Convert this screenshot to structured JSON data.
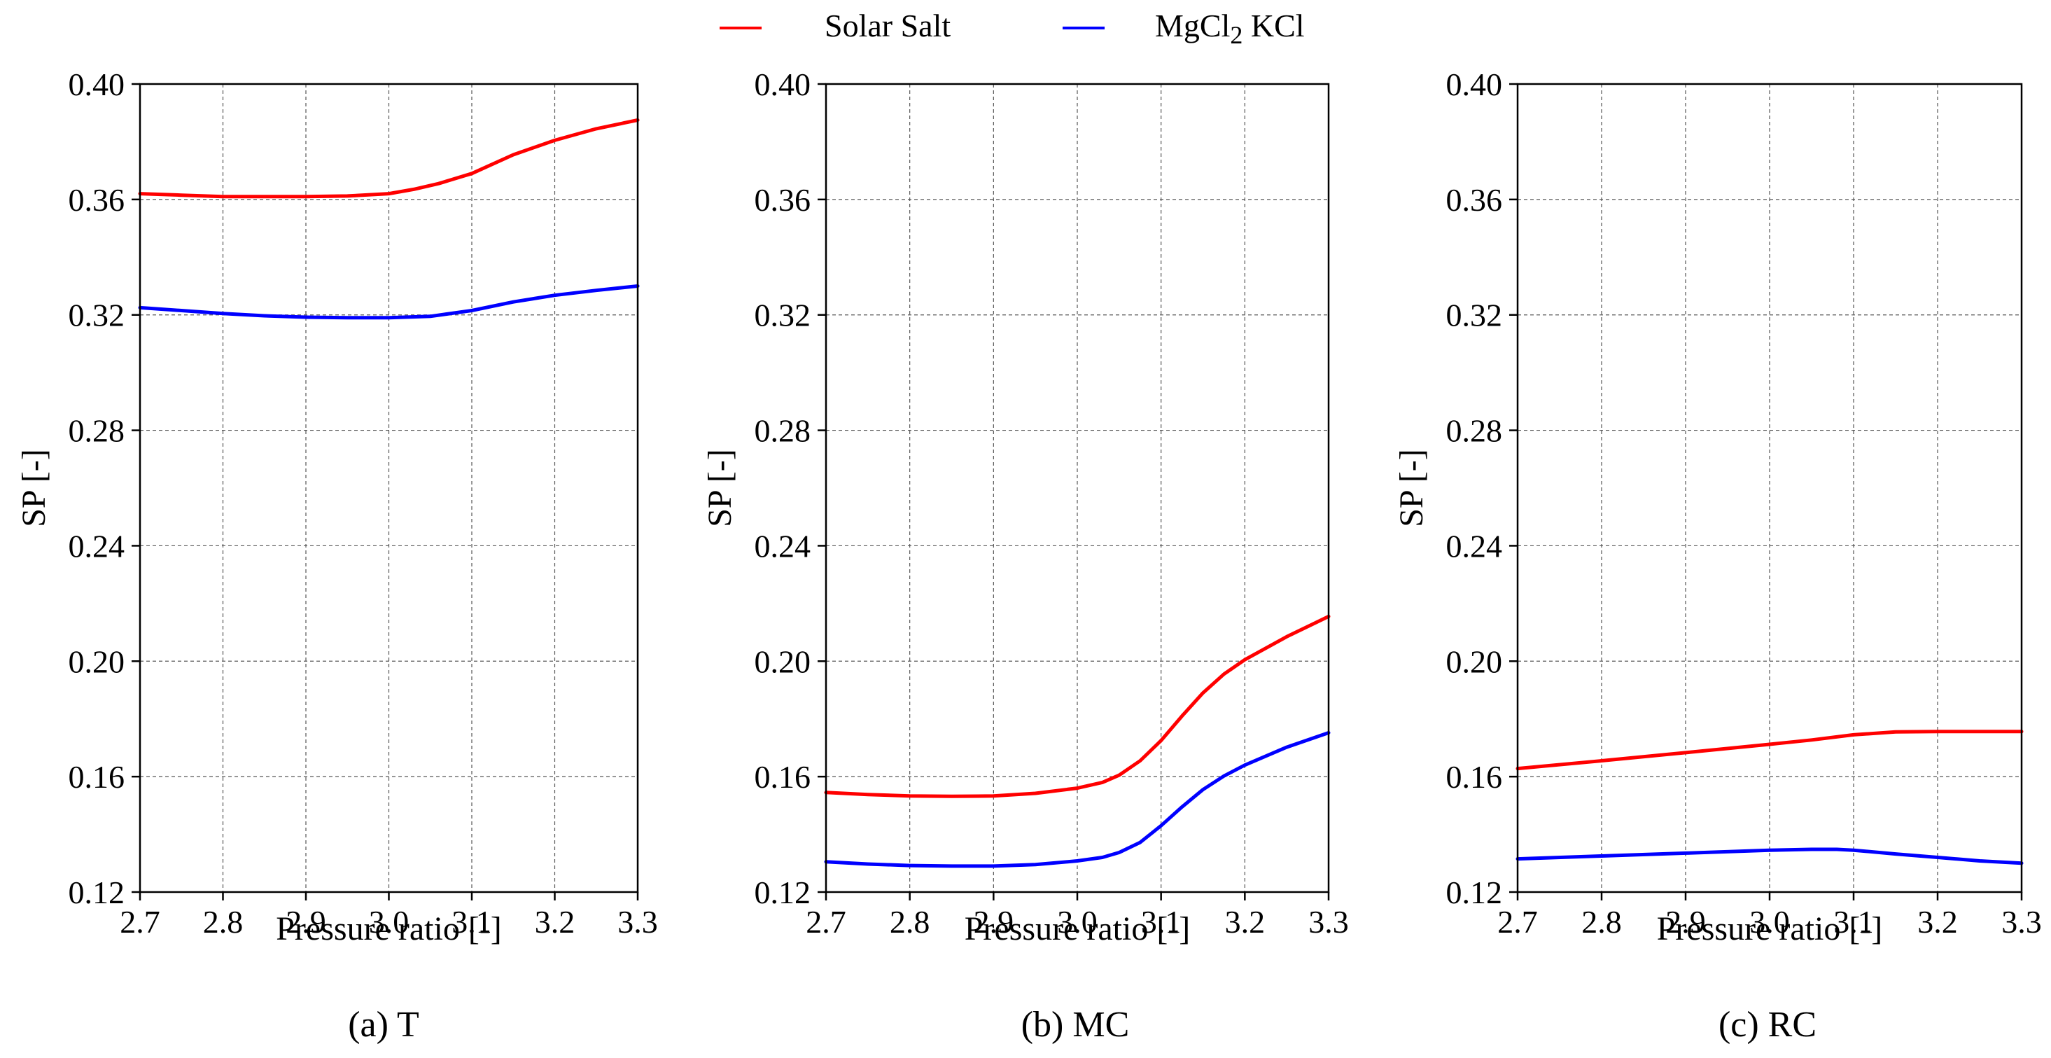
{
  "legend": {
    "placement": "top-center",
    "entries": [
      {
        "label": "Solar Salt",
        "color": "#ff0000"
      },
      {
        "label_main": "MgCl",
        "label_sub": "2",
        "label_rest": " KCl",
        "color": "#0000ff"
      }
    ]
  },
  "chart_data": [
    {
      "type": "line",
      "title": "(a) T",
      "xlabel": "Pressure ratio [-]",
      "ylabel": "SP [-]",
      "xlim": [
        2.7,
        3.3
      ],
      "ylim": [
        0.12,
        0.4
      ],
      "xticks": [
        "2.7",
        "2.8",
        "2.9",
        "3.0",
        "3.1",
        "3.2",
        "3.3"
      ],
      "yticks": [
        "0.12",
        "0.16",
        "0.20",
        "0.24",
        "0.28",
        "0.32",
        "0.36",
        "0.40"
      ],
      "grid": true,
      "series": [
        {
          "name": "Solar Salt",
          "color": "#ff0000",
          "x": [
            2.7,
            2.75,
            2.8,
            2.85,
            2.9,
            2.95,
            3.0,
            3.03,
            3.06,
            3.1,
            3.15,
            3.2,
            3.25,
            3.3
          ],
          "y": [
            0.362,
            0.3615,
            0.361,
            0.361,
            0.361,
            0.3612,
            0.362,
            0.3635,
            0.3655,
            0.369,
            0.3755,
            0.3805,
            0.3845,
            0.3875
          ]
        },
        {
          "name": "MgCl2 KCl",
          "color": "#0000ff",
          "x": [
            2.7,
            2.75,
            2.8,
            2.85,
            2.9,
            2.95,
            3.0,
            3.05,
            3.1,
            3.15,
            3.2,
            3.25,
            3.3
          ],
          "y": [
            0.3225,
            0.3215,
            0.3205,
            0.3197,
            0.3192,
            0.319,
            0.319,
            0.3195,
            0.3215,
            0.3245,
            0.3268,
            0.3285,
            0.33
          ]
        }
      ]
    },
    {
      "type": "line",
      "title": "(b) MC",
      "xlabel": "Pressure ratio [-]",
      "ylabel": "SP [-]",
      "xlim": [
        2.7,
        3.3
      ],
      "ylim": [
        0.12,
        0.4
      ],
      "xticks": [
        "2.7",
        "2.8",
        "2.9",
        "3.0",
        "3.1",
        "3.2",
        "3.3"
      ],
      "yticks": [
        "0.12",
        "0.16",
        "0.20",
        "0.24",
        "0.28",
        "0.32",
        "0.36",
        "0.40"
      ],
      "grid": true,
      "series": [
        {
          "name": "Solar Salt",
          "color": "#ff0000",
          "x": [
            2.7,
            2.75,
            2.8,
            2.85,
            2.9,
            2.95,
            3.0,
            3.03,
            3.05,
            3.075,
            3.1,
            3.125,
            3.15,
            3.175,
            3.2,
            3.25,
            3.3
          ],
          "y": [
            0.1545,
            0.1538,
            0.1533,
            0.1532,
            0.1533,
            0.1542,
            0.156,
            0.158,
            0.1605,
            0.1655,
            0.1725,
            0.181,
            0.189,
            0.1955,
            0.2005,
            0.2085,
            0.2155
          ]
        },
        {
          "name": "MgCl2 KCl",
          "color": "#0000ff",
          "x": [
            2.7,
            2.75,
            2.8,
            2.85,
            2.9,
            2.95,
            3.0,
            3.03,
            3.05,
            3.075,
            3.1,
            3.125,
            3.15,
            3.175,
            3.2,
            3.25,
            3.3
          ],
          "y": [
            0.1305,
            0.1297,
            0.1292,
            0.129,
            0.129,
            0.1295,
            0.1308,
            0.132,
            0.1337,
            0.1372,
            0.143,
            0.1495,
            0.1555,
            0.1602,
            0.164,
            0.1702,
            0.1752
          ]
        }
      ]
    },
    {
      "type": "line",
      "title": "(c) RC",
      "xlabel": "Pressure ratio [-]",
      "ylabel": "SP [-]",
      "xlim": [
        2.7,
        3.3
      ],
      "ylim": [
        0.12,
        0.4
      ],
      "xticks": [
        "2.7",
        "2.8",
        "2.9",
        "3.0",
        "3.1",
        "3.2",
        "3.3"
      ],
      "yticks": [
        "0.12",
        "0.16",
        "0.20",
        "0.24",
        "0.28",
        "0.32",
        "0.36",
        "0.40"
      ],
      "grid": true,
      "series": [
        {
          "name": "Solar Salt",
          "color": "#ff0000",
          "x": [
            2.7,
            2.8,
            2.9,
            3.0,
            3.05,
            3.1,
            3.15,
            3.2,
            3.25,
            3.3
          ],
          "y": [
            0.1628,
            0.1655,
            0.1683,
            0.1712,
            0.1727,
            0.1745,
            0.1755,
            0.1756,
            0.1756,
            0.1756
          ]
        },
        {
          "name": "MgCl2 KCl",
          "color": "#0000ff",
          "x": [
            2.7,
            2.8,
            2.9,
            3.0,
            3.05,
            3.08,
            3.1,
            3.15,
            3.2,
            3.25,
            3.3
          ],
          "y": [
            0.1315,
            0.1325,
            0.1335,
            0.1345,
            0.1348,
            0.1348,
            0.1345,
            0.1332,
            0.132,
            0.1308,
            0.13
          ]
        }
      ]
    }
  ]
}
